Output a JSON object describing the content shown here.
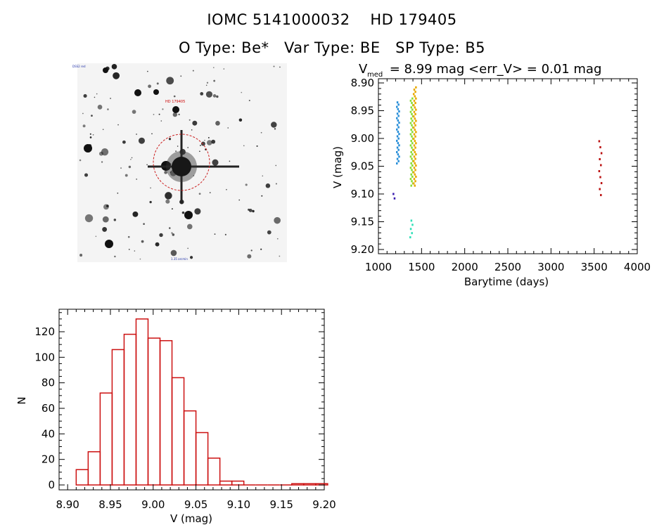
{
  "header": {
    "title_line1": "IOMC 5141000032    HD 179405",
    "title_line2": "O Type: Be*   Var Type: BE   SP Type: B5"
  },
  "chart_data": [
    {
      "type": "scatter",
      "title_parts": [
        "V",
        "med",
        " = 8.99 mag <err_V> = 0.01 mag"
      ],
      "xlabel": "Barytime (days)",
      "ylabel": "V (mag)",
      "xlim": [
        1000,
        4000
      ],
      "ylim": [
        9.2,
        8.9
      ],
      "y_inverted": true,
      "xticks": [
        1000,
        1500,
        2000,
        2500,
        3000,
        3500,
        4000
      ],
      "yticks": [
        "8.90",
        "8.95",
        "9.00",
        "9.05",
        "9.10",
        "9.15",
        "9.20"
      ],
      "groups": [
        {
          "color": "#3a1db0",
          "x": 1185,
          "ymin": 9.1,
          "ymax": 9.108,
          "n": 2
        },
        {
          "color": "#2a8fd8",
          "x": 1225,
          "ymin": 8.935,
          "ymax": 9.045,
          "n": 28
        },
        {
          "color": "#30e0b8",
          "x": 1380,
          "ymin": 9.148,
          "ymax": 9.178,
          "n": 5
        },
        {
          "color": "#88dd33",
          "x": 1385,
          "ymin": 8.928,
          "ymax": 9.085,
          "n": 40
        },
        {
          "color": "#e8a800",
          "x": 1420,
          "ymin": 8.908,
          "ymax": 9.085,
          "n": 45
        },
        {
          "color": "#bb1111",
          "x": 3570,
          "ymin": 9.005,
          "ymax": 9.102,
          "n": 10
        }
      ]
    },
    {
      "type": "bar",
      "xlabel": "V (mag)",
      "ylabel": "N",
      "xlim": [
        8.89,
        9.2
      ],
      "ylim": [
        0,
        135
      ],
      "xticks": [
        "8.90",
        "8.95",
        "9.00",
        "9.05",
        "9.10",
        "9.15",
        "9.20"
      ],
      "yticks": [
        "0",
        "20",
        "40",
        "60",
        "80",
        "100",
        "120"
      ],
      "bin_start": 8.91,
      "bin_width": 0.014,
      "values": [
        12,
        26,
        72,
        106,
        118,
        130,
        115,
        113,
        84,
        58,
        41,
        21,
        3,
        3,
        0,
        0,
        0,
        0,
        1,
        1,
        1
      ],
      "bar_color": "#cc1111"
    }
  ],
  "sky_image": {
    "target_label": "HD 179405",
    "corner_label_tl": "DSS2 red",
    "corner_label_bottom": "1.35 arcmin"
  }
}
